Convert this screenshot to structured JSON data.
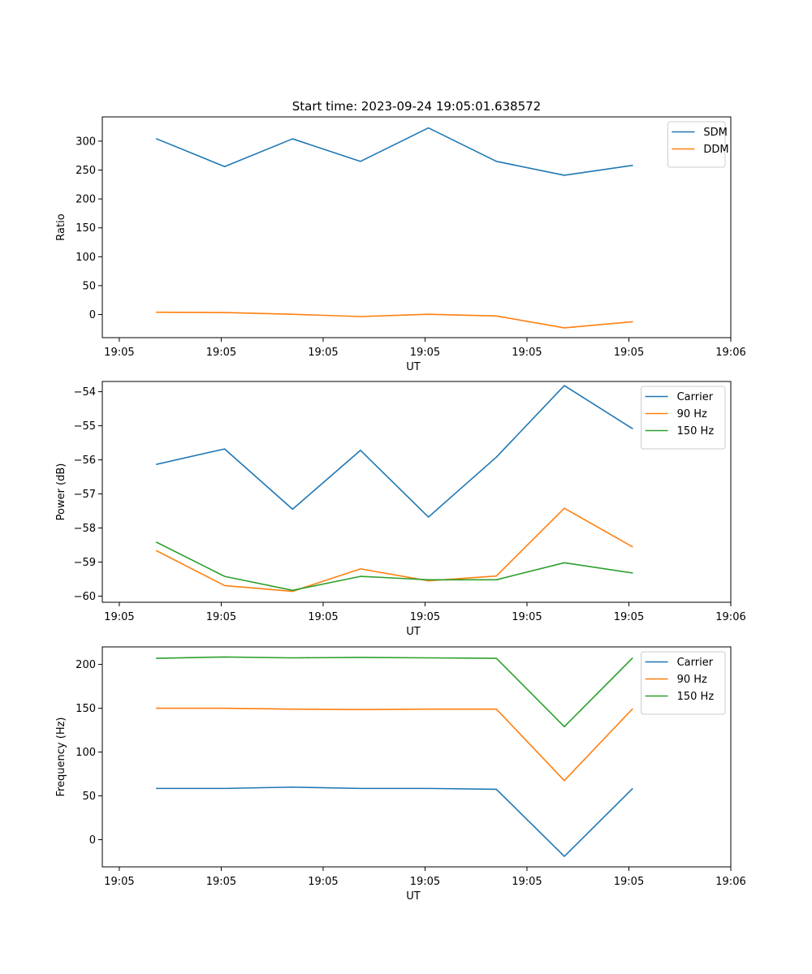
{
  "figure_title": "Start time: 2023-09-24 19:05:01.638572",
  "chart_data": [
    {
      "type": "line",
      "title": "Start time: 2023-09-24 19:05:01.638572",
      "xlabel": "UT",
      "ylabel": "Ratio",
      "x": [
        1,
        2,
        3,
        4,
        5,
        6,
        7,
        8
      ],
      "xlim": [
        0.2,
        9.45
      ],
      "xticks": [
        0.45,
        1.95,
        3.45,
        4.95,
        6.45,
        7.95,
        9.45
      ],
      "xtick_labels": [
        "19:05",
        "19:05",
        "19:05",
        "19:05",
        "19:05",
        "19:05",
        "19:06"
      ],
      "ylim": [
        -40,
        342
      ],
      "yticks": [
        0,
        50,
        100,
        150,
        200,
        250,
        300
      ],
      "ytick_labels": [
        "0",
        "50",
        "100",
        "150",
        "200",
        "250",
        "300"
      ],
      "legend_position": "top-right",
      "series": [
        {
          "name": "SDM",
          "color": "#1f77b4",
          "values": [
            304,
            256,
            304,
            265,
            323,
            265,
            241,
            258
          ]
        },
        {
          "name": "DDM",
          "color": "#ff7f0e",
          "values": [
            4,
            3.5,
            0.5,
            -3.5,
            0.5,
            -2.5,
            -23,
            -12.5
          ]
        }
      ]
    },
    {
      "type": "line",
      "title": "",
      "xlabel": "UT",
      "ylabel": "Power (dB)",
      "x": [
        1,
        2,
        3,
        4,
        5,
        6,
        7,
        8
      ],
      "xlim": [
        0.2,
        9.45
      ],
      "xticks": [
        0.45,
        1.95,
        3.45,
        4.95,
        6.45,
        7.95,
        9.45
      ],
      "xtick_labels": [
        "19:05",
        "19:05",
        "19:05",
        "19:05",
        "19:05",
        "19:05",
        "19:06"
      ],
      "ylim": [
        -60.18,
        -53.7
      ],
      "yticks": [
        -60,
        -59,
        -58,
        -57,
        -56,
        -55,
        -54
      ],
      "ytick_labels": [
        "−60",
        "−59",
        "−58",
        "−57",
        "−56",
        "−55",
        "−54"
      ],
      "legend_position": "top-right",
      "series": [
        {
          "name": "Carrier",
          "color": "#1f77b4",
          "values": [
            -56.13,
            -55.68,
            -57.45,
            -55.72,
            -57.68,
            -55.92,
            -53.82,
            -55.08
          ]
        },
        {
          "name": "90 Hz",
          "color": "#ff7f0e",
          "values": [
            -58.67,
            -59.69,
            -59.86,
            -59.2,
            -59.55,
            -59.41,
            -57.42,
            -58.55
          ]
        },
        {
          "name": "150 Hz",
          "color": "#2ca02c",
          "values": [
            -58.42,
            -59.42,
            -59.83,
            -59.42,
            -59.52,
            -59.52,
            -59.02,
            -59.32
          ]
        }
      ]
    },
    {
      "type": "line",
      "title": "",
      "xlabel": "UT",
      "ylabel": "Frequency (Hz)",
      "x": [
        1,
        2,
        3,
        4,
        5,
        6,
        7,
        8
      ],
      "xlim": [
        0.2,
        9.45
      ],
      "xticks": [
        0.45,
        1.95,
        3.45,
        4.95,
        6.45,
        7.95,
        9.45
      ],
      "xtick_labels": [
        "19:05",
        "19:05",
        "19:05",
        "19:05",
        "19:05",
        "19:05",
        "19:06"
      ],
      "ylim": [
        -31,
        220
      ],
      "yticks": [
        0,
        50,
        100,
        150,
        200
      ],
      "ytick_labels": [
        "0",
        "50",
        "100",
        "150",
        "200"
      ],
      "legend_position": "top-right",
      "series": [
        {
          "name": "Carrier",
          "color": "#1f77b4",
          "values": [
            58.5,
            58.5,
            60,
            58.5,
            58.5,
            57.5,
            -19,
            58
          ]
        },
        {
          "name": "90 Hz",
          "color": "#ff7f0e",
          "values": [
            150,
            150,
            149,
            148.5,
            149,
            149,
            67.5,
            149
          ]
        },
        {
          "name": "150 Hz",
          "color": "#2ca02c",
          "values": [
            207,
            208.5,
            207.5,
            208,
            207.5,
            207,
            129,
            207
          ]
        }
      ]
    }
  ]
}
